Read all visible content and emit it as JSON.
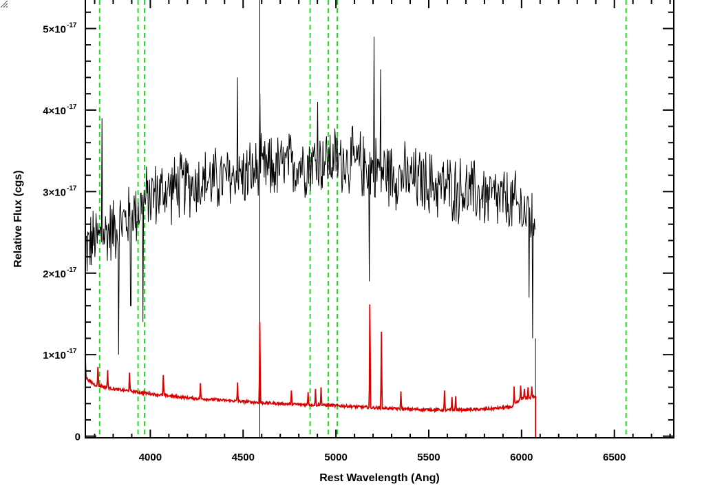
{
  "chart_data": {
    "type": "line",
    "title": "",
    "xlabel": "Rest Wavelength (Ang)",
    "ylabel": "Relative Flux (cgs)",
    "xlim": [
      3650,
      6820
    ],
    "ylim": [
      -2e-19,
      5.35e-17
    ],
    "x_ticks": [
      {
        "value": 4000,
        "label": "4000"
      },
      {
        "value": 4500,
        "label": "4500"
      },
      {
        "value": 5000,
        "label": "5000"
      },
      {
        "value": 5500,
        "label": "5500"
      },
      {
        "value": 6000,
        "label": "6000"
      },
      {
        "value": 6500,
        "label": "6500"
      }
    ],
    "y_ticks": [
      {
        "value": 0,
        "label": "0",
        "exp": ""
      },
      {
        "value": 1e-17,
        "label": "1×10",
        "exp": "-17"
      },
      {
        "value": 2e-17,
        "label": "2×10",
        "exp": "-17"
      },
      {
        "value": 3e-17,
        "label": "3×10",
        "exp": "-17"
      },
      {
        "value": 4e-17,
        "label": "4×10",
        "exp": "-17"
      },
      {
        "value": 5e-17,
        "label": "5×10",
        "exp": "-17"
      }
    ],
    "reference_lines": {
      "color": "#22dd22",
      "style": "dashed",
      "x": [
        3727,
        3934,
        3969,
        4861,
        4959,
        5007,
        6563
      ]
    },
    "series": [
      {
        "color": "#000000",
        "continuum": [
          [
            3650,
            2.3e-17
          ],
          [
            3700,
            2.4e-17
          ],
          [
            3800,
            2.55e-17
          ],
          [
            3900,
            2.7e-17
          ],
          [
            4000,
            2.95e-17
          ],
          [
            4200,
            3.1e-17
          ],
          [
            4400,
            3.15e-17
          ],
          [
            4600,
            3.25e-17
          ],
          [
            4800,
            3.35e-17
          ],
          [
            5000,
            3.4e-17
          ],
          [
            5200,
            3.3e-17
          ],
          [
            5400,
            3.15e-17
          ],
          [
            5600,
            3.05e-17
          ],
          [
            5800,
            2.95e-17
          ],
          [
            5950,
            2.85e-17
          ],
          [
            6060,
            2.7e-17
          ]
        ],
        "noise_amplitude": 3.5e-18,
        "features": [
          [
            3740,
            3.9e-17
          ],
          [
            3830,
            1e-17
          ],
          [
            3895,
            1.6e-17
          ],
          [
            3960,
            1.4e-17
          ],
          [
            4470,
            4.4e-17
          ],
          [
            4590,
            4.2e-17
          ],
          [
            4900,
            4.1e-17
          ],
          [
            5180,
            1.9e-17
          ],
          [
            5205,
            4.9e-17
          ],
          [
            5240,
            4.5e-17
          ],
          [
            6040,
            1.7e-17
          ],
          [
            6060,
            1.2e-17
          ]
        ],
        "x_end": 6075,
        "spike": [
          [
            4590,
            5.35e-17
          ],
          [
            4590,
            -2e-19
          ]
        ],
        "drop": [
          [
            6075,
            1.2e-17
          ],
          [
            6075,
            -2e-19
          ]
        ]
      },
      {
        "color": "#dd0000",
        "continuum": [
          [
            3650,
            7.2e-18
          ],
          [
            3700,
            6.3e-18
          ],
          [
            3800,
            5.8e-18
          ],
          [
            3900,
            5.5e-18
          ],
          [
            4000,
            5.2e-18
          ],
          [
            4200,
            4.7e-18
          ],
          [
            4400,
            4.4e-18
          ],
          [
            4600,
            4.1e-18
          ],
          [
            4800,
            3.9e-18
          ],
          [
            5000,
            3.75e-18
          ],
          [
            5200,
            3.5e-18
          ],
          [
            5400,
            3.3e-18
          ],
          [
            5600,
            3.2e-18
          ],
          [
            5800,
            3.3e-18
          ],
          [
            5950,
            3.6e-18
          ],
          [
            6000,
            4.6e-18
          ],
          [
            6070,
            4.8e-18
          ]
        ],
        "noise_amplitude": 1.6e-19,
        "emission_lines": [
          [
            3650,
            9.5e-18
          ],
          [
            3718,
            8.6e-18
          ],
          [
            3770,
            8.1e-18
          ],
          [
            3888,
            7.9e-18
          ],
          [
            4070,
            7.5e-18
          ],
          [
            4270,
            6.5e-18
          ],
          [
            4470,
            6.6e-18
          ],
          [
            4590,
            1.4e-17
          ],
          [
            4760,
            5.6e-18
          ],
          [
            4850,
            5.4e-18
          ],
          [
            4890,
            5.8e-18
          ],
          [
            4920,
            6e-18
          ],
          [
            5183,
            1.68e-17
          ],
          [
            5245,
            1.28e-17
          ],
          [
            5350,
            5.5e-18
          ],
          [
            5585,
            5.6e-18
          ],
          [
            5625,
            4.8e-18
          ],
          [
            5645,
            4.9e-18
          ],
          [
            5960,
            6.1e-18
          ],
          [
            5995,
            6.2e-18
          ],
          [
            6015,
            5.8e-18
          ],
          [
            6035,
            6e-18
          ],
          [
            6055,
            6.1e-18
          ]
        ],
        "x_end": 6075,
        "after_end": [
          [
            6075,
            -2e-19
          ],
          [
            6820,
            -2e-19
          ]
        ]
      }
    ]
  }
}
